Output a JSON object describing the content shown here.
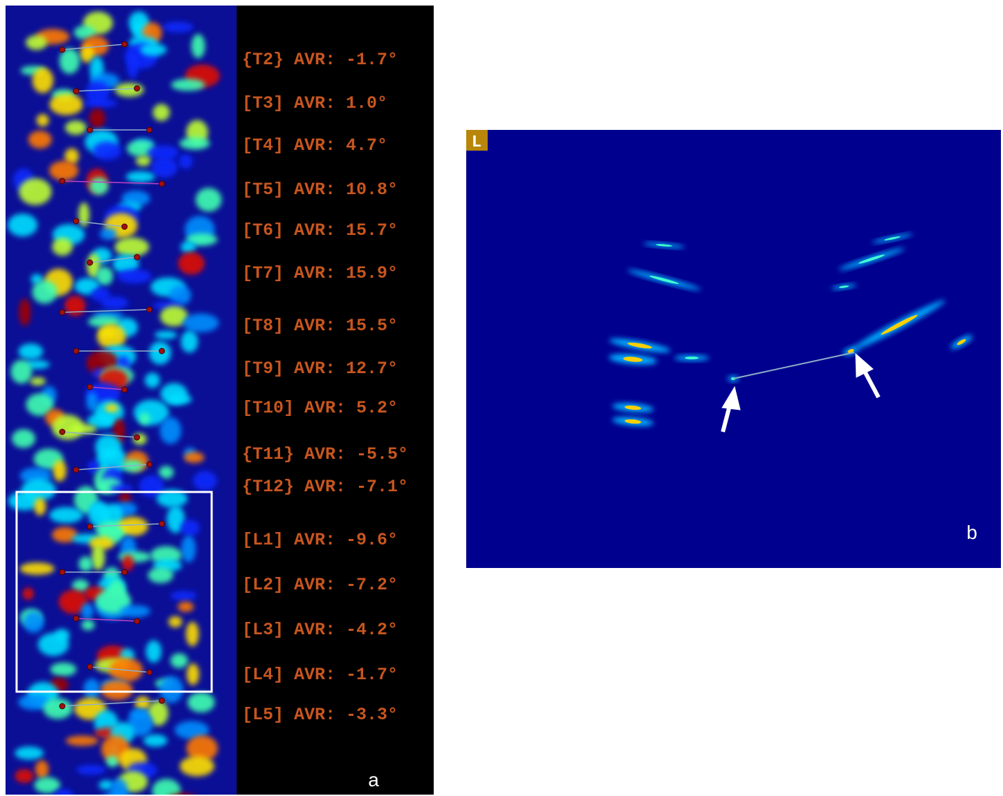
{
  "panel_a": {
    "measurements": [
      "{T2} AVR: -1.7°",
      "[T3] AVR: 1.0°",
      "[T4] AVR: 4.7°",
      "[T5] AVR: 10.8°",
      "[T6] AVR: 15.7°",
      "[T7] AVR: 15.9°",
      "[T8] AVR: 15.5°",
      "[T9] AVR: 12.7°",
      "[T10] AVR: 5.2°",
      "{T11} AVR: -5.5°",
      "{T12} AVR: -7.1°",
      "[L1] AVR: -9.6°",
      "[L2] AVR: -7.2°",
      "[L3] AVR: -4.2°",
      "[L4] AVR: -1.7°",
      "[L5] AVR: -3.3°"
    ],
    "label": "a"
  },
  "panel_b": {
    "orientation_marker": "L",
    "label": "b"
  }
}
